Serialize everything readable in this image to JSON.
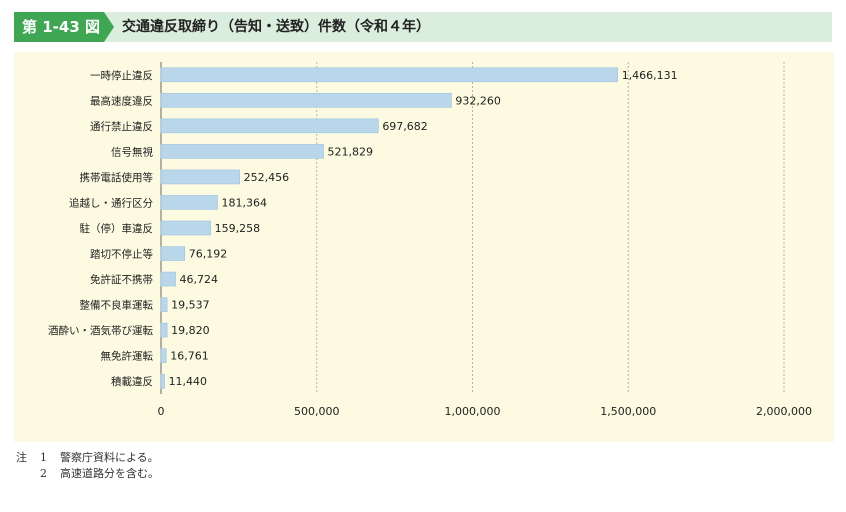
{
  "header": {
    "figure_label": "第 1-43 図",
    "title": "交通違反取締り（告知・送致）件数（令和４年）"
  },
  "colors": {
    "tag": "#3fa654",
    "header_band": "#dbeedd",
    "panel": "#fcfbe2",
    "bar": "#b9d6ea",
    "bar_stroke": "#9fc3de",
    "grid": "#b5b5a5"
  },
  "chart_data": {
    "type": "bar",
    "orientation": "horizontal",
    "categories": [
      "一時停止違反",
      "最高速度違反",
      "通行禁止違反",
      "信号無視",
      "携帯電話使用等",
      "追越し・通行区分",
      "駐（停）車違反",
      "踏切不停止等",
      "免許証不携帯",
      "整備不良車運転",
      "酒酔い・酒気帯び運転",
      "無免許運転",
      "積載違反"
    ],
    "values": [
      1466131,
      932260,
      697682,
      521829,
      252456,
      181364,
      159258,
      76192,
      46724,
      19537,
      19820,
      16761,
      11440
    ],
    "value_labels": [
      "1,466,131",
      "932,260",
      "697,682",
      "521,829",
      "252,456",
      "181,364",
      "159,258",
      "76,192",
      "46,724",
      "19,537",
      "19,820",
      "16,761",
      "11,440"
    ],
    "xlim": [
      0,
      2000000
    ],
    "xticks": [
      0,
      500000,
      1000000,
      1500000,
      2000000
    ],
    "xtick_labels": [
      "0",
      "500,000",
      "1,000,000",
      "1,500,000",
      "2,000,000"
    ],
    "grid": "vertical dotted"
  },
  "notes": {
    "head": "注",
    "items": [
      {
        "num": "1",
        "text": "警察庁資料による。"
      },
      {
        "num": "2",
        "text": "高速道路分を含む。"
      }
    ]
  }
}
